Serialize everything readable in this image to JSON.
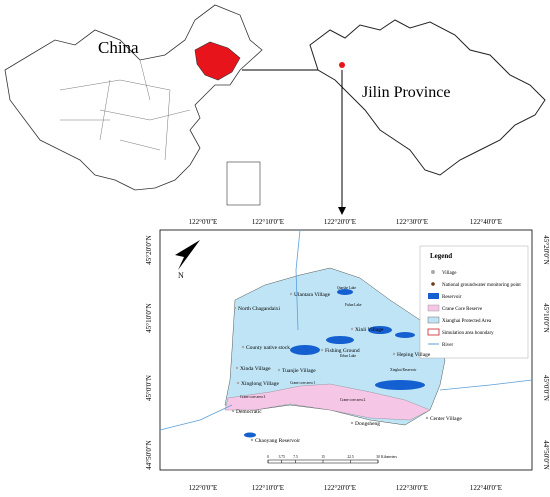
{
  "china_map": {
    "label": "China"
  },
  "province_map": {
    "label": "Jilin Province"
  },
  "study_area": {
    "top_ticks": [
      "122°0'0\"E",
      "122°10'0\"E",
      "122°20'0\"E",
      "122°30'0\"E",
      "122°40'0\"E"
    ],
    "bottom_ticks": [
      "122°0'0\"E",
      "122°10'0\"E",
      "122°20'0\"E",
      "122°30'0\"E",
      "122°40'0\"E"
    ],
    "left_ticks": [
      "45°20'0\"N",
      "45°10'0\"N",
      "45°0'0\"N",
      "44°50'0\"N"
    ],
    "right_ticks": [
      "45°20'0\"N",
      "45°10'0\"N",
      "45°0'0\"N",
      "44°50'0\"N"
    ],
    "north": "N",
    "legend": {
      "title": "Legend",
      "items": [
        "Village",
        "National groundwater monitoring point",
        "Reservoir",
        "Crane Core Reserve",
        "Xianghai Protected Area",
        "Simulation area boundary",
        "River"
      ]
    },
    "places": [
      "Ulantara Village",
      "North Chagandaixi",
      "Xinli Village",
      "County native stock",
      "Fishing Ground",
      "Heping Village",
      "Tuanjie Village",
      "Xinda Village",
      "Xinglong Village",
      "Democratic",
      "Center Village",
      "Dongsheng",
      "Chaoyang Reservoir"
    ],
    "small_labels": [
      "Qunshe Lake",
      "Erlun Lake",
      "Fulun Lake",
      "Crane core area 1",
      "Crane core area 2",
      "Crane core area 3",
      "Xinghai Reservoir"
    ],
    "scale_bar": {
      "ticks": [
        0,
        3.75,
        7.5,
        15,
        22.5,
        30
      ],
      "unit": "Kilometers"
    }
  }
}
